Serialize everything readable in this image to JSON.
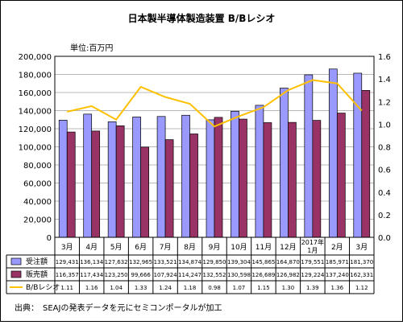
{
  "source_note": "出典：　SEAJの発表データを元にセミコンポータルが加工",
  "chart_data": {
    "type": "bar",
    "title": "日本製半導体製造装置 B/Bレシオ",
    "unit_label": "単位:百万円",
    "categories": [
      "3月",
      "4月",
      "5月",
      "6月",
      "7月",
      "8月",
      "9月",
      "10月",
      "11月",
      "12月",
      "2017年\n1月",
      "2月",
      "3月"
    ],
    "y_left": {
      "min": 0,
      "max": 200000,
      "ticks": [
        "0",
        "20,000",
        "40,000",
        "60,000",
        "80,000",
        "100,000",
        "120,000",
        "140,000",
        "160,000",
        "180,000",
        "200,000"
      ]
    },
    "y_right": {
      "min": 0,
      "max": 1.6,
      "ticks": [
        "0.0",
        "0.2",
        "0.4",
        "0.6",
        "0.8",
        "1.0",
        "1.2",
        "1.4",
        "1.6"
      ]
    },
    "series": [
      {
        "name": "受注額",
        "kind": "bar",
        "axis": "left",
        "color": "#9999ff",
        "values": [
          129431,
          136134,
          127632,
          132965,
          133521,
          134874,
          129850,
          139304,
          145865,
          164870,
          179551,
          185971,
          181370
        ],
        "labels": [
          "129,431",
          "136,134",
          "127,632",
          "132,965",
          "133,521",
          "134,874",
          "129,850",
          "139,304",
          "145,865",
          "164,870",
          "179,551",
          "185,971",
          "181,370"
        ]
      },
      {
        "name": "販売額",
        "kind": "bar",
        "axis": "left",
        "color": "#993366",
        "values": [
          116357,
          117434,
          123250,
          99666,
          107924,
          114247,
          132552,
          130598,
          126689,
          126982,
          129224,
          137240,
          162331
        ],
        "labels": [
          "116,357",
          "117,434",
          "123,250",
          "99,666",
          "107,924",
          "114,247",
          "132,552",
          "130,598",
          "126,689",
          "126,982",
          "129,224",
          "137,240",
          "162,331"
        ]
      },
      {
        "name": "B/Bレシオ",
        "kind": "line",
        "axis": "right",
        "color": "#ffc000",
        "values": [
          1.11,
          1.16,
          1.04,
          1.33,
          1.24,
          1.18,
          0.98,
          1.07,
          1.15,
          1.3,
          1.39,
          1.36,
          1.12
        ],
        "labels": [
          "1.11",
          "1.16",
          "1.04",
          "1.33",
          "1.24",
          "1.18",
          "0.98",
          "1.07",
          "1.15",
          "1.30",
          "1.39",
          "1.36",
          "1.12"
        ]
      }
    ],
    "grid": true,
    "legend": "data-table-left"
  }
}
